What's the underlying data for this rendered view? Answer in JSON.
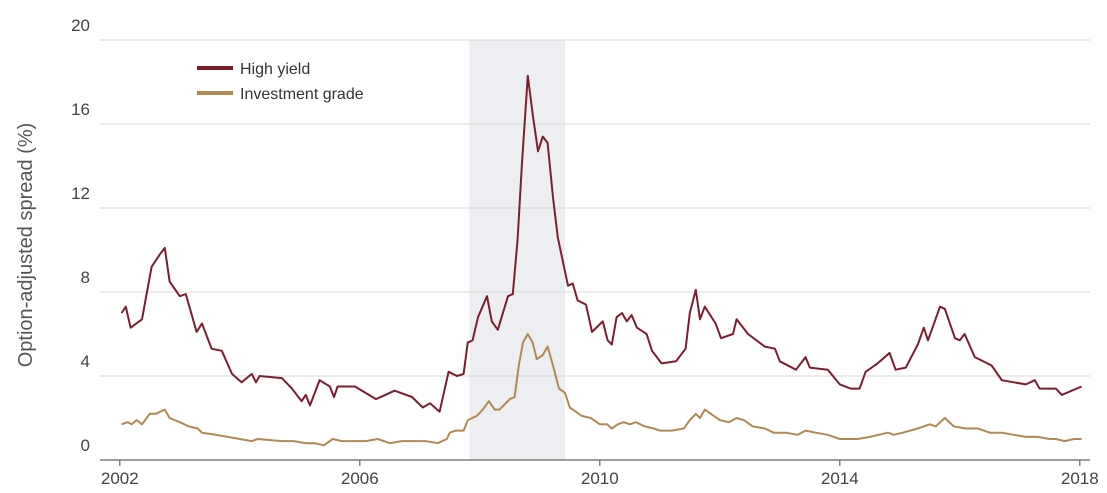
{
  "chart_data": {
    "type": "line",
    "ylabel": "Option-adjusted spread (%)",
    "xlim": [
      2001.67,
      2018.17
    ],
    "xticks": [
      2002,
      2006,
      2010,
      2014,
      2018
    ],
    "ylim": [
      0,
      20
    ],
    "yticks": [
      0,
      4,
      8,
      12,
      16,
      20
    ],
    "grid": true,
    "legend": "upper left",
    "shaded_region": [
      2007.83,
      2009.42
    ],
    "series": [
      {
        "name": "High yield",
        "color": "#7b1f2e",
        "x": [
          2002.03,
          2002.1,
          2002.18,
          2002.37,
          2002.53,
          2002.67,
          2002.75,
          2002.83,
          2003.0,
          2003.1,
          2003.28,
          2003.37,
          2003.53,
          2003.7,
          2003.87,
          2004.03,
          2004.2,
          2004.27,
          2004.33,
          2004.7,
          2004.87,
          2005.03,
          2005.1,
          2005.17,
          2005.33,
          2005.5,
          2005.57,
          2005.63,
          2005.92,
          2006.27,
          2006.58,
          2006.87,
          2007.05,
          2007.17,
          2007.33,
          2007.48,
          2007.62,
          2007.73,
          2007.8,
          2007.88,
          2007.97,
          2008.12,
          2008.2,
          2008.3,
          2008.47,
          2008.55,
          2008.63,
          2008.7,
          2008.8,
          2008.88,
          2008.97,
          2009.05,
          2009.13,
          2009.22,
          2009.3,
          2009.47,
          2009.55,
          2009.63,
          2009.77,
          2009.87,
          2010.05,
          2010.13,
          2010.2,
          2010.28,
          2010.37,
          2010.45,
          2010.53,
          2010.62,
          2010.78,
          2010.87,
          2011.03,
          2011.27,
          2011.43,
          2011.5,
          2011.6,
          2011.67,
          2011.75,
          2011.93,
          2012.02,
          2012.22,
          2012.28,
          2012.47,
          2012.75,
          2012.92,
          2013.0,
          2013.27,
          2013.43,
          2013.5,
          2013.8,
          2014.0,
          2014.18,
          2014.33,
          2014.43,
          2014.63,
          2014.83,
          2014.93,
          2015.1,
          2015.3,
          2015.4,
          2015.47,
          2015.67,
          2015.75,
          2015.92,
          2016.0,
          2016.08,
          2016.25,
          2016.53,
          2016.7,
          2016.9,
          2017.1,
          2017.25,
          2017.33,
          2017.6,
          2017.7,
          2018.03
        ],
        "values": [
          7.0,
          7.3,
          6.3,
          6.7,
          9.2,
          9.8,
          10.1,
          8.5,
          7.8,
          7.9,
          6.1,
          6.5,
          5.3,
          5.2,
          4.1,
          3.7,
          4.1,
          3.7,
          4.0,
          3.9,
          3.4,
          2.8,
          3.1,
          2.6,
          3.8,
          3.5,
          3.0,
          3.5,
          3.5,
          2.9,
          3.3,
          3.0,
          2.5,
          2.7,
          2.3,
          4.2,
          4.0,
          4.1,
          5.6,
          5.7,
          6.8,
          7.8,
          6.6,
          6.2,
          7.8,
          7.9,
          10.5,
          14.0,
          18.3,
          16.5,
          14.7,
          15.4,
          15.1,
          12.5,
          10.6,
          8.3,
          8.4,
          7.6,
          7.4,
          6.1,
          6.6,
          5.7,
          5.5,
          6.8,
          7.0,
          6.6,
          6.9,
          6.3,
          6.0,
          5.2,
          4.6,
          4.7,
          5.3,
          7.0,
          8.1,
          6.7,
          7.3,
          6.5,
          5.8,
          6.0,
          6.7,
          6.0,
          5.4,
          5.3,
          4.7,
          4.3,
          4.9,
          4.4,
          4.3,
          3.6,
          3.4,
          3.4,
          4.2,
          4.6,
          5.1,
          4.3,
          4.4,
          5.5,
          6.3,
          5.7,
          7.3,
          7.2,
          5.8,
          5.7,
          6.0,
          4.9,
          4.5,
          3.8,
          3.7,
          3.6,
          3.8,
          3.4,
          3.4,
          3.1,
          3.5
        ]
      },
      {
        "name": "Investment grade",
        "color": "#b08a52",
        "x": [
          2002.03,
          2002.13,
          2002.2,
          2002.28,
          2002.37,
          2002.5,
          2002.6,
          2002.75,
          2002.83,
          2003.0,
          2003.15,
          2003.3,
          2003.37,
          2003.6,
          2003.8,
          2004.0,
          2004.2,
          2004.3,
          2004.7,
          2004.9,
          2005.1,
          2005.25,
          2005.4,
          2005.55,
          2005.7,
          2005.85,
          2006.1,
          2006.3,
          2006.5,
          2006.7,
          2006.9,
          2007.1,
          2007.3,
          2007.45,
          2007.5,
          2007.6,
          2007.73,
          2007.8,
          2007.95,
          2008.05,
          2008.15,
          2008.25,
          2008.33,
          2008.5,
          2008.58,
          2008.65,
          2008.72,
          2008.8,
          2008.88,
          2008.95,
          2009.05,
          2009.13,
          2009.22,
          2009.32,
          2009.42,
          2009.5,
          2009.6,
          2009.7,
          2009.85,
          2010.0,
          2010.12,
          2010.2,
          2010.3,
          2010.4,
          2010.5,
          2010.6,
          2010.75,
          2010.9,
          2011.0,
          2011.2,
          2011.4,
          2011.5,
          2011.6,
          2011.67,
          2011.75,
          2011.85,
          2012.0,
          2012.15,
          2012.28,
          2012.4,
          2012.55,
          2012.75,
          2012.9,
          2013.1,
          2013.3,
          2013.43,
          2013.6,
          2013.8,
          2014.0,
          2014.3,
          2014.5,
          2014.65,
          2014.8,
          2014.9,
          2015.05,
          2015.3,
          2015.5,
          2015.6,
          2015.75,
          2015.9,
          2016.1,
          2016.3,
          2016.5,
          2016.7,
          2016.9,
          2017.1,
          2017.3,
          2017.5,
          2017.6,
          2017.75,
          2017.9,
          2018.03
        ],
        "values": [
          1.7,
          1.8,
          1.7,
          1.9,
          1.7,
          2.2,
          2.2,
          2.4,
          2.0,
          1.8,
          1.6,
          1.5,
          1.3,
          1.2,
          1.1,
          1.0,
          0.9,
          1.0,
          0.9,
          0.9,
          0.8,
          0.8,
          0.7,
          1.0,
          0.9,
          0.9,
          0.9,
          1.0,
          0.8,
          0.9,
          0.9,
          0.9,
          0.8,
          1.0,
          1.3,
          1.4,
          1.4,
          1.9,
          2.1,
          2.4,
          2.8,
          2.4,
          2.4,
          2.9,
          3.0,
          4.5,
          5.6,
          6.0,
          5.6,
          4.8,
          5.0,
          5.4,
          4.5,
          3.4,
          3.2,
          2.5,
          2.3,
          2.1,
          2.0,
          1.7,
          1.7,
          1.5,
          1.7,
          1.8,
          1.7,
          1.8,
          1.6,
          1.5,
          1.4,
          1.4,
          1.5,
          1.9,
          2.2,
          2.0,
          2.4,
          2.2,
          1.9,
          1.8,
          2.0,
          1.9,
          1.6,
          1.5,
          1.3,
          1.3,
          1.2,
          1.4,
          1.3,
          1.2,
          1.0,
          1.0,
          1.1,
          1.2,
          1.3,
          1.2,
          1.3,
          1.5,
          1.7,
          1.6,
          2.0,
          1.6,
          1.5,
          1.5,
          1.3,
          1.3,
          1.2,
          1.1,
          1.1,
          1.0,
          1.0,
          0.9,
          1.0,
          1.0
        ]
      }
    ]
  }
}
